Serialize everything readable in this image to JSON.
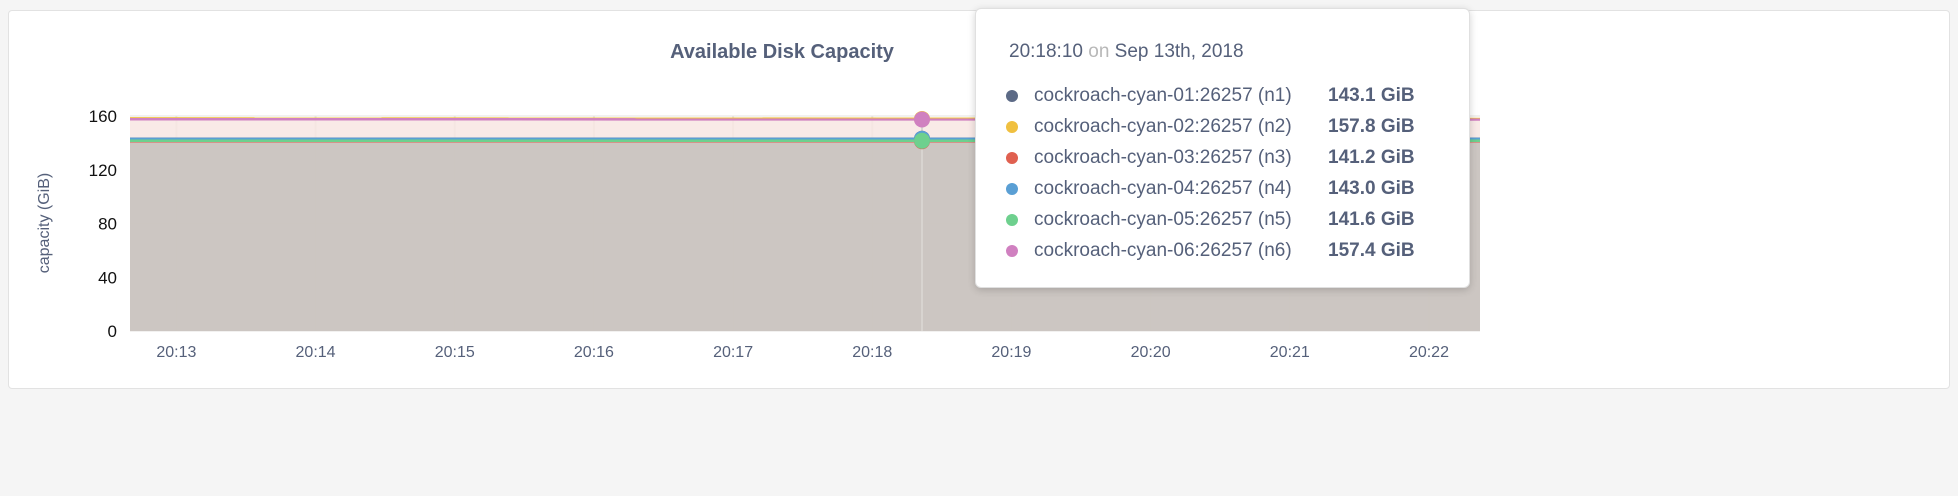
{
  "chart_data": {
    "type": "area",
    "title": "Available Disk Capacity",
    "ylabel": "capacity (GiB)",
    "xlabel": "",
    "ylim": [
      0,
      160
    ],
    "yticks": [
      "0",
      "40",
      "80",
      "120",
      "160"
    ],
    "xlim": [
      "20:12:40",
      "20:22:22"
    ],
    "xticks": [
      "20:13",
      "20:14",
      "20:15",
      "20:16",
      "20:17",
      "20:18",
      "20:19",
      "20:20",
      "20:21",
      "20:22"
    ],
    "grid": true,
    "series": [
      {
        "name": "cockroach-cyan-01:26257 (n1)",
        "color": "#5c6a86",
        "values": [
          143.1,
          143.1
        ]
      },
      {
        "name": "cockroach-cyan-02:26257 (n2)",
        "color": "#f0c040",
        "values": [
          158.2,
          157.8
        ]
      },
      {
        "name": "cockroach-cyan-03:26257 (n3)",
        "color": "#e06050",
        "values": [
          141.2,
          141.2
        ]
      },
      {
        "name": "cockroach-cyan-04:26257 (n4)",
        "color": "#5a9fd4",
        "values": [
          143.0,
          143.0
        ]
      },
      {
        "name": "cockroach-cyan-05:26257 (n5)",
        "color": "#6ed08e",
        "values": [
          141.6,
          141.6
        ]
      },
      {
        "name": "cockroach-cyan-06:26257 (n6)",
        "color": "#d080c0",
        "values": [
          157.6,
          157.4
        ]
      }
    ]
  },
  "tooltip": {
    "time": "20:18:10",
    "on": "on",
    "date": "Sep 13th, 2018",
    "rows": [
      {
        "label": "cockroach-cyan-01:26257 (n1)",
        "value": "143.1 GiB",
        "color": "#5c6a86"
      },
      {
        "label": "cockroach-cyan-02:26257 (n2)",
        "value": "157.8 GiB",
        "color": "#f0c040"
      },
      {
        "label": "cockroach-cyan-03:26257 (n3)",
        "value": "141.2 GiB",
        "color": "#e06050"
      },
      {
        "label": "cockroach-cyan-04:26257 (n4)",
        "value": "143.0 GiB",
        "color": "#5a9fd4"
      },
      {
        "label": "cockroach-cyan-05:26257 (n5)",
        "value": "141.6 GiB",
        "color": "#6ed08e"
      },
      {
        "label": "cockroach-cyan-06:26257 (n6)",
        "value": "157.4 GiB",
        "color": "#d080c0"
      }
    ]
  }
}
